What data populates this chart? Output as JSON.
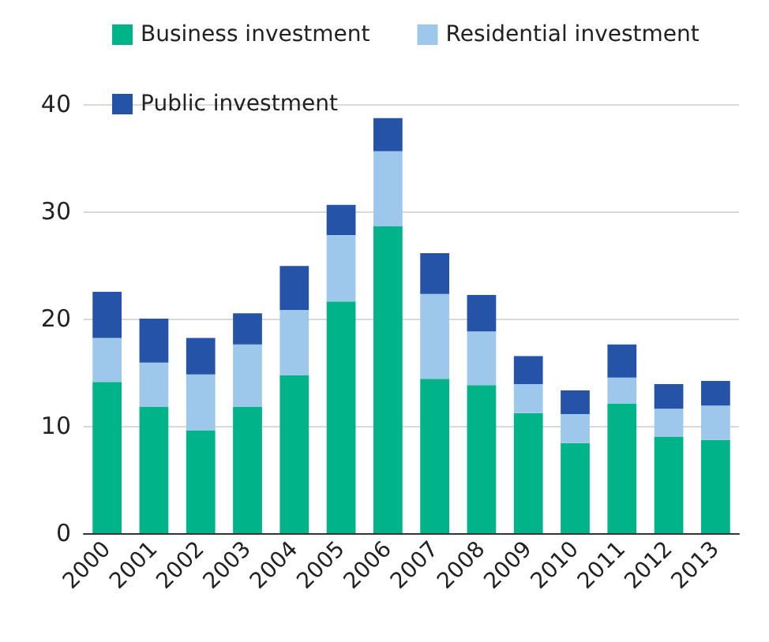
{
  "chart_data": {
    "type": "bar",
    "stacked": true,
    "categories": [
      "2000",
      "2001",
      "2002",
      "2003",
      "2004",
      "2005",
      "2006",
      "2007",
      "2008",
      "2009",
      "2010",
      "2011",
      "2012",
      "2013"
    ],
    "series": [
      {
        "name": "Business investment",
        "color": "#00b388",
        "values": [
          14.1,
          11.8,
          9.6,
          11.8,
          14.7,
          21.6,
          28.6,
          14.4,
          13.8,
          11.2,
          8.4,
          12.1,
          9.0,
          8.7
        ]
      },
      {
        "name": "Residential investment",
        "color": "#9dc8ec",
        "values": [
          4.1,
          4.1,
          5.2,
          5.8,
          6.1,
          6.2,
          7.0,
          7.9,
          5.0,
          2.7,
          2.7,
          2.4,
          2.6,
          3.2
        ]
      },
      {
        "name": "Public investment",
        "color": "#2553a8",
        "values": [
          4.3,
          4.1,
          3.4,
          2.9,
          4.1,
          2.8,
          3.1,
          3.8,
          3.4,
          2.6,
          2.2,
          3.1,
          2.3,
          2.3
        ]
      }
    ],
    "ylim": [
      0,
      40
    ],
    "yticks": [
      0,
      10,
      20,
      30,
      40
    ],
    "grid": "y",
    "legend": "top left"
  }
}
